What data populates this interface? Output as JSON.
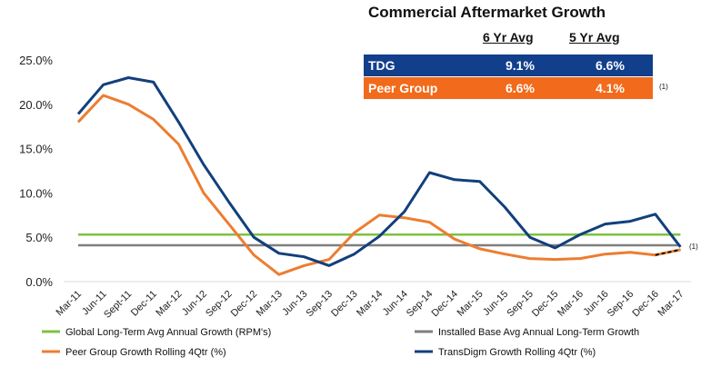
{
  "title": "Commercial Aftermarket Growth",
  "table": {
    "columns": [
      "6 Yr Avg",
      "5 Yr Avg"
    ],
    "rows": [
      {
        "label": "TDG",
        "values": [
          "9.1%",
          "6.6%"
        ],
        "color": "#123f8c"
      },
      {
        "label": "Peer Group",
        "values": [
          "6.6%",
          "4.1%"
        ],
        "color": "#f26a1b"
      }
    ],
    "footnote": "(1)"
  },
  "chart_data": {
    "type": "line",
    "categories": [
      "Mar-11",
      "Jun-11",
      "Sept-11",
      "Dec-11",
      "Mar-12",
      "Jun-12",
      "Sep-12",
      "Dec-12",
      "Mar-13",
      "Jun-13",
      "Sep-13",
      "Dec-13",
      "Mar-14",
      "Jun-14",
      "Sep-14",
      "Dec-14",
      "Mar-15",
      "Jun-15",
      "Sep-15",
      "Dec-15",
      "Mar-16",
      "Jun-16",
      "Sep-16",
      "Dec-16",
      "Mar-17"
    ],
    "yticks": [
      "0.0%",
      "5.0%",
      "10.0%",
      "15.0%",
      "20.0%",
      "25.0%"
    ],
    "ylim": [
      0,
      25
    ],
    "series": [
      {
        "name": "Global Long-Term Avg Annual Growth (RPM's)",
        "color": "#7dc242",
        "values": [
          5.3,
          5.3,
          5.3,
          5.3,
          5.3,
          5.3,
          5.3,
          5.3,
          5.3,
          5.3,
          5.3,
          5.3,
          5.3,
          5.3,
          5.3,
          5.3,
          5.3,
          5.3,
          5.3,
          5.3,
          5.3,
          5.3,
          5.3,
          5.3,
          5.3
        ]
      },
      {
        "name": "Installed Base Avg Annual Long-Term Growth",
        "color": "#7f7f7f",
        "values": [
          4.1,
          4.1,
          4.1,
          4.1,
          4.1,
          4.1,
          4.1,
          4.1,
          4.1,
          4.1,
          4.1,
          4.1,
          4.1,
          4.1,
          4.1,
          4.1,
          4.1,
          4.1,
          4.1,
          4.1,
          4.1,
          4.1,
          4.1,
          4.1,
          4.1
        ]
      },
      {
        "name": "Peer Group Growth Rolling 4Qtr (%)",
        "color": "#ed7d31",
        "values": [
          18.0,
          21.0,
          20.0,
          18.3,
          15.5,
          10.0,
          6.5,
          3.0,
          0.8,
          1.8,
          2.5,
          5.5,
          7.5,
          7.2,
          6.7,
          4.8,
          3.7,
          3.1,
          2.6,
          2.5,
          2.6,
          3.1,
          3.3,
          3.0,
          3.6
        ]
      },
      {
        "name": "TransDigm Growth Rolling 4Qtr (%)",
        "color": "#123f7c",
        "values": [
          18.9,
          22.2,
          23.0,
          22.5,
          18.0,
          13.2,
          9.0,
          5.0,
          3.2,
          2.8,
          1.8,
          3.1,
          5.1,
          7.9,
          12.3,
          11.5,
          11.3,
          8.4,
          5.0,
          3.8,
          5.3,
          6.5,
          6.8,
          7.6,
          3.9
        ]
      }
    ],
    "annotation": "(1)",
    "grid": false,
    "legend_position": "bottom"
  }
}
